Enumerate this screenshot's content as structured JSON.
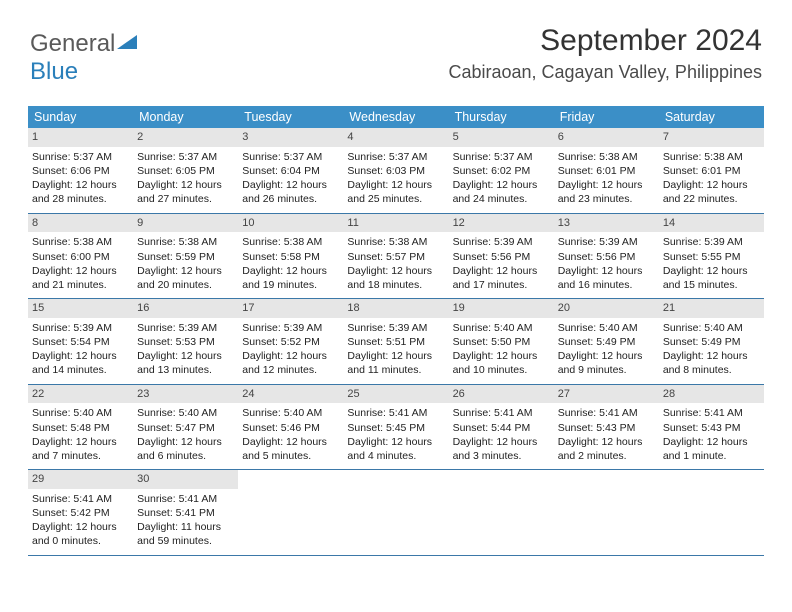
{
  "logo": {
    "part1": "General",
    "part2": "Blue"
  },
  "title": "September 2024",
  "location": "Cabiraoan, Cagayan Valley, Philippines",
  "colors": {
    "header_bg": "#3b8fc7",
    "header_text": "#ffffff",
    "daynum_bg": "#e6e6e6",
    "week_border": "#3b78a8",
    "logo_gray": "#5a5a5a",
    "logo_blue": "#2a7fba"
  },
  "day_headers": [
    "Sunday",
    "Monday",
    "Tuesday",
    "Wednesday",
    "Thursday",
    "Friday",
    "Saturday"
  ],
  "weeks": [
    [
      {
        "n": "1",
        "sr": "5:37 AM",
        "ss": "6:06 PM",
        "dl": "12 hours and 28 minutes."
      },
      {
        "n": "2",
        "sr": "5:37 AM",
        "ss": "6:05 PM",
        "dl": "12 hours and 27 minutes."
      },
      {
        "n": "3",
        "sr": "5:37 AM",
        "ss": "6:04 PM",
        "dl": "12 hours and 26 minutes."
      },
      {
        "n": "4",
        "sr": "5:37 AM",
        "ss": "6:03 PM",
        "dl": "12 hours and 25 minutes."
      },
      {
        "n": "5",
        "sr": "5:37 AM",
        "ss": "6:02 PM",
        "dl": "12 hours and 24 minutes."
      },
      {
        "n": "6",
        "sr": "5:38 AM",
        "ss": "6:01 PM",
        "dl": "12 hours and 23 minutes."
      },
      {
        "n": "7",
        "sr": "5:38 AM",
        "ss": "6:01 PM",
        "dl": "12 hours and 22 minutes."
      }
    ],
    [
      {
        "n": "8",
        "sr": "5:38 AM",
        "ss": "6:00 PM",
        "dl": "12 hours and 21 minutes."
      },
      {
        "n": "9",
        "sr": "5:38 AM",
        "ss": "5:59 PM",
        "dl": "12 hours and 20 minutes."
      },
      {
        "n": "10",
        "sr": "5:38 AM",
        "ss": "5:58 PM",
        "dl": "12 hours and 19 minutes."
      },
      {
        "n": "11",
        "sr": "5:38 AM",
        "ss": "5:57 PM",
        "dl": "12 hours and 18 minutes."
      },
      {
        "n": "12",
        "sr": "5:39 AM",
        "ss": "5:56 PM",
        "dl": "12 hours and 17 minutes."
      },
      {
        "n": "13",
        "sr": "5:39 AM",
        "ss": "5:56 PM",
        "dl": "12 hours and 16 minutes."
      },
      {
        "n": "14",
        "sr": "5:39 AM",
        "ss": "5:55 PM",
        "dl": "12 hours and 15 minutes."
      }
    ],
    [
      {
        "n": "15",
        "sr": "5:39 AM",
        "ss": "5:54 PM",
        "dl": "12 hours and 14 minutes."
      },
      {
        "n": "16",
        "sr": "5:39 AM",
        "ss": "5:53 PM",
        "dl": "12 hours and 13 minutes."
      },
      {
        "n": "17",
        "sr": "5:39 AM",
        "ss": "5:52 PM",
        "dl": "12 hours and 12 minutes."
      },
      {
        "n": "18",
        "sr": "5:39 AM",
        "ss": "5:51 PM",
        "dl": "12 hours and 11 minutes."
      },
      {
        "n": "19",
        "sr": "5:40 AM",
        "ss": "5:50 PM",
        "dl": "12 hours and 10 minutes."
      },
      {
        "n": "20",
        "sr": "5:40 AM",
        "ss": "5:49 PM",
        "dl": "12 hours and 9 minutes."
      },
      {
        "n": "21",
        "sr": "5:40 AM",
        "ss": "5:49 PM",
        "dl": "12 hours and 8 minutes."
      }
    ],
    [
      {
        "n": "22",
        "sr": "5:40 AM",
        "ss": "5:48 PM",
        "dl": "12 hours and 7 minutes."
      },
      {
        "n": "23",
        "sr": "5:40 AM",
        "ss": "5:47 PM",
        "dl": "12 hours and 6 minutes."
      },
      {
        "n": "24",
        "sr": "5:40 AM",
        "ss": "5:46 PM",
        "dl": "12 hours and 5 minutes."
      },
      {
        "n": "25",
        "sr": "5:41 AM",
        "ss": "5:45 PM",
        "dl": "12 hours and 4 minutes."
      },
      {
        "n": "26",
        "sr": "5:41 AM",
        "ss": "5:44 PM",
        "dl": "12 hours and 3 minutes."
      },
      {
        "n": "27",
        "sr": "5:41 AM",
        "ss": "5:43 PM",
        "dl": "12 hours and 2 minutes."
      },
      {
        "n": "28",
        "sr": "5:41 AM",
        "ss": "5:43 PM",
        "dl": "12 hours and 1 minute."
      }
    ],
    [
      {
        "n": "29",
        "sr": "5:41 AM",
        "ss": "5:42 PM",
        "dl": "12 hours and 0 minutes."
      },
      {
        "n": "30",
        "sr": "5:41 AM",
        "ss": "5:41 PM",
        "dl": "11 hours and 59 minutes."
      },
      null,
      null,
      null,
      null,
      null
    ]
  ],
  "labels": {
    "sunrise": "Sunrise: ",
    "sunset": "Sunset: ",
    "daylight": "Daylight: "
  }
}
